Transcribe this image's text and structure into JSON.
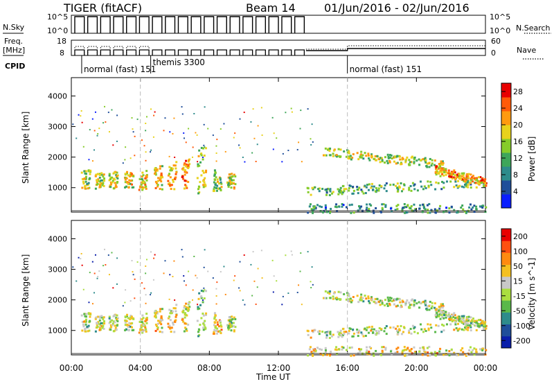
{
  "header": {
    "radar": "TIGER (fitACF)",
    "beam": "Beam 14",
    "date_range": "01/Jun/2016 - 02/Jun/2016"
  },
  "top_panels": {
    "nsky_label": "N.Sky",
    "nsearch_label": "N.Search",
    "freq_label_1": "Freq.",
    "freq_label_2": "[MHz]",
    "nave_label": "Nave",
    "cpid_label": "CPID",
    "nsky_ticks": [
      "10^5",
      "10^0"
    ],
    "nsearch_ticks": [
      "10^5",
      "10^0"
    ],
    "freq_ticks": [
      "18",
      "8"
    ],
    "nave_ticks": [
      "60",
      "0"
    ]
  },
  "cpid_segments": [
    {
      "label": "normal (fast) 151",
      "start_hour": 0.6
    },
    {
      "label": "themis 3300",
      "start_hour": 4.6
    },
    {
      "label": "normal (fast) 151",
      "start_hour": 16.0
    }
  ],
  "x_axis": {
    "label": "Time UT",
    "tick_labels": [
      "00:00",
      "04:00",
      "08:00",
      "12:00",
      "16:00",
      "20:00",
      "00:00"
    ],
    "range_hours": [
      0,
      24
    ]
  },
  "chart_data": [
    {
      "type": "heatmap",
      "parameter": "power",
      "ylabel": "Slant Range [km]",
      "ylim": [
        200,
        4600
      ],
      "y_ticks": [
        1000,
        2000,
        3000,
        4000
      ],
      "colorbar_label": "Power [dB]",
      "colorbar_ticks": [
        "4",
        "8",
        "12",
        "16",
        "20",
        "24",
        "28"
      ],
      "colorbar_range": [
        0,
        30
      ],
      "colors": [
        "#0a1eff",
        "#1f4e9a",
        "#2e8b8b",
        "#3ea65a",
        "#86cc2a",
        "#e8d21c",
        "#ff9a10",
        "#ff5a08",
        "#e80000"
      ],
      "blocks": [
        {
          "t": 0.8,
          "r": [
            1000,
            1600
          ],
          "level": 0.55
        },
        {
          "t": 1.6,
          "r": [
            1000,
            1550
          ],
          "level": 0.55
        },
        {
          "t": 2.4,
          "r": [
            1000,
            1550
          ],
          "level": 0.6
        },
        {
          "t": 3.3,
          "r": [
            1000,
            1550
          ],
          "level": 0.6
        },
        {
          "t": 4.1,
          "r": [
            950,
            1600
          ],
          "level": 0.62
        },
        {
          "t": 5.0,
          "r": [
            950,
            1750
          ],
          "level": 0.65
        },
        {
          "t": 5.8,
          "r": [
            950,
            1900
          ],
          "level": 0.7
        },
        {
          "t": 6.6,
          "r": [
            950,
            2000
          ],
          "level": 0.8
        },
        {
          "t": 7.5,
          "r": [
            800,
            2400
          ],
          "level": 0.55
        },
        {
          "t": 8.4,
          "r": [
            900,
            1600
          ],
          "level": 0.5
        },
        {
          "t": 9.2,
          "r": [
            1000,
            1500
          ],
          "level": 0.6
        }
      ],
      "trails": [
        {
          "t0": 13.6,
          "t1": 24.0,
          "r0": 900,
          "r1": 1200,
          "level": 0.4
        },
        {
          "t0": 14.5,
          "t1": 21.5,
          "r0": 2200,
          "r1": 1800,
          "level": 0.55
        },
        {
          "t0": 21.0,
          "t1": 24.0,
          "r0": 1600,
          "r1": 1200,
          "level": 0.75
        },
        {
          "t0": 13.6,
          "t1": 24.0,
          "r0": 350,
          "r1": 350,
          "level": 0.3
        }
      ]
    },
    {
      "type": "heatmap",
      "parameter": "velocity",
      "ylabel": "Slant Range [km]",
      "ylim": [
        200,
        4600
      ],
      "y_ticks": [
        1000,
        2000,
        3000,
        4000
      ],
      "colorbar_label": "Velocity [m s^-1]",
      "colorbar_ticks": [
        "200",
        "100",
        "50",
        "15",
        "-15",
        "-50",
        "-100",
        "-200"
      ],
      "colorbar_range": [
        -250,
        250
      ],
      "colors": [
        "#0a1eaa",
        "#1f4e9a",
        "#2e8b8b",
        "#5ab84a",
        "#aade40",
        "#c8c8c8",
        "#f4c020",
        "#ff8a10",
        "#ff5010",
        "#e80000"
      ],
      "blocks": [
        {
          "t": 0.8,
          "r": [
            1000,
            1600
          ],
          "level": 0.5
        },
        {
          "t": 1.6,
          "r": [
            1000,
            1550
          ],
          "level": 0.5
        },
        {
          "t": 2.4,
          "r": [
            1000,
            1550
          ],
          "level": 0.5
        },
        {
          "t": 3.3,
          "r": [
            1000,
            1550
          ],
          "level": 0.5
        },
        {
          "t": 4.1,
          "r": [
            950,
            1600
          ],
          "level": 0.55
        },
        {
          "t": 5.0,
          "r": [
            950,
            1750
          ],
          "level": 0.6
        },
        {
          "t": 5.8,
          "r": [
            950,
            1900
          ],
          "level": 0.62
        },
        {
          "t": 6.6,
          "r": [
            950,
            2000
          ],
          "level": 0.6
        },
        {
          "t": 7.5,
          "r": [
            800,
            2400
          ],
          "level": 0.4
        },
        {
          "t": 8.4,
          "r": [
            900,
            1600
          ],
          "level": 0.65
        },
        {
          "t": 9.2,
          "r": [
            1000,
            1500
          ],
          "level": 0.5
        }
      ],
      "trails": [
        {
          "t0": 13.6,
          "t1": 24.0,
          "r0": 900,
          "r1": 1200,
          "level": 0.5
        },
        {
          "t0": 14.5,
          "t1": 21.5,
          "r0": 2200,
          "r1": 1800,
          "level": 0.5
        },
        {
          "t0": 21.0,
          "t1": 24.0,
          "r0": 1600,
          "r1": 1200,
          "level": 0.5
        },
        {
          "t0": 13.6,
          "t1": 24.0,
          "r0": 350,
          "r1": 350,
          "level": 0.6
        }
      ]
    }
  ]
}
